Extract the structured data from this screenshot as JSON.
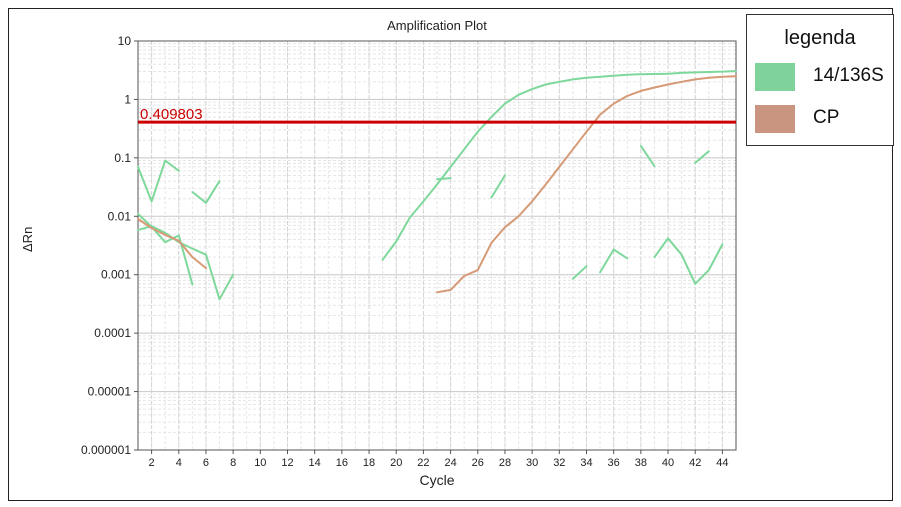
{
  "chart_data": {
    "type": "line",
    "title": "Amplification Plot",
    "xlabel": "Cycle",
    "ylabel": "ΔRn",
    "y_scale": "log",
    "xlim": [
      1,
      45
    ],
    "ylim": [
      1e-06,
      10
    ],
    "x_ticks": [
      2,
      4,
      6,
      8,
      10,
      12,
      14,
      16,
      18,
      20,
      22,
      24,
      26,
      28,
      30,
      32,
      34,
      36,
      38,
      40,
      42,
      44
    ],
    "y_ticks": [
      {
        "value": 10,
        "label": "10"
      },
      {
        "value": 1,
        "label": "1"
      },
      {
        "value": 0.1,
        "label": "0.1"
      },
      {
        "value": 0.01,
        "label": "0.01"
      },
      {
        "value": 0.001,
        "label": "0.001"
      },
      {
        "value": 0.0001,
        "label": "0.0001"
      },
      {
        "value": 1e-05,
        "label": "0.00001"
      },
      {
        "value": 1e-06,
        "label": "0.000001"
      }
    ],
    "grid": true,
    "threshold": {
      "value": 0.409803,
      "label": "0.409803",
      "color": "#cc0000"
    },
    "legend": {
      "title": "legenda",
      "position": "top-right",
      "items": [
        {
          "label": "14/136S",
          "color": "#7fd39a"
        },
        {
          "label": "CP",
          "color": "#c99580"
        }
      ]
    },
    "series": [
      {
        "name": "14/136S",
        "color": "#7ed89b",
        "segments": [
          [
            [
              1,
              0.07
            ],
            [
              2,
              0.018
            ],
            [
              3,
              0.09
            ],
            [
              4,
              0.06
            ]
          ],
          [
            [
              5,
              0.026
            ],
            [
              6,
              0.017
            ],
            [
              7,
              0.04
            ]
          ],
          [
            [
              1,
              0.011
            ],
            [
              2,
              0.0066
            ],
            [
              3,
              0.0036
            ],
            [
              4,
              0.0047
            ],
            [
              5,
              0.00068
            ]
          ],
          [
            [
              1,
              0.0058
            ],
            [
              2,
              0.0068
            ],
            [
              3,
              0.0052
            ],
            [
              4,
              0.0036
            ],
            [
              5,
              0.0028
            ],
            [
              6,
              0.0022
            ],
            [
              7,
              0.00038
            ],
            [
              8,
              0.001
            ]
          ],
          [
            [
              19,
              0.0018
            ],
            [
              20,
              0.0037
            ],
            [
              21,
              0.0095
            ],
            [
              22,
              0.018
            ],
            [
              23,
              0.035
            ],
            [
              24,
              0.07
            ],
            [
              25,
              0.14
            ],
            [
              26,
              0.28
            ],
            [
              27,
              0.5
            ],
            [
              28,
              0.85
            ],
            [
              29,
              1.2
            ],
            [
              30,
              1.5
            ],
            [
              31,
              1.8
            ],
            [
              32,
              2.0
            ],
            [
              33,
              2.2
            ],
            [
              34,
              2.35
            ],
            [
              35,
              2.45
            ],
            [
              36,
              2.55
            ],
            [
              37,
              2.65
            ],
            [
              38,
              2.7
            ],
            [
              39,
              2.72
            ],
            [
              40,
              2.75
            ],
            [
              41,
              2.85
            ],
            [
              42,
              2.9
            ],
            [
              43,
              2.95
            ],
            [
              44,
              3.0
            ],
            [
              45,
              3.05
            ]
          ],
          [
            [
              23,
              0.043
            ],
            [
              24,
              0.045
            ]
          ],
          [
            [
              27,
              0.021
            ],
            [
              28,
              0.05
            ]
          ],
          [
            [
              33,
              0.00085
            ],
            [
              34,
              0.0014
            ]
          ],
          [
            [
              35,
              0.0011
            ],
            [
              36,
              0.0027
            ],
            [
              37,
              0.0019
            ]
          ],
          [
            [
              38,
              0.16
            ],
            [
              39,
              0.072
            ]
          ],
          [
            [
              39,
              0.002
            ],
            [
              40,
              0.0042
            ],
            [
              41,
              0.0022
            ],
            [
              42,
              0.0007
            ],
            [
              43,
              0.0012
            ],
            [
              44,
              0.0033
            ]
          ],
          [
            [
              42,
              0.082
            ],
            [
              43,
              0.13
            ]
          ]
        ]
      },
      {
        "name": "CP",
        "color": "#d69a77",
        "segments": [
          [
            [
              1,
              0.009
            ],
            [
              2,
              0.0063
            ],
            [
              3,
              0.0048
            ],
            [
              4,
              0.0038
            ],
            [
              5,
              0.002
            ],
            [
              6,
              0.0013
            ]
          ],
          [
            [
              23,
              0.0005
            ],
            [
              24,
              0.00055
            ],
            [
              25,
              0.00095
            ],
            [
              26,
              0.0012
            ],
            [
              27,
              0.0035
            ],
            [
              28,
              0.0065
            ],
            [
              29,
              0.01
            ],
            [
              30,
              0.018
            ],
            [
              31,
              0.035
            ],
            [
              32,
              0.07
            ],
            [
              33,
              0.14
            ],
            [
              34,
              0.28
            ],
            [
              35,
              0.55
            ],
            [
              36,
              0.85
            ],
            [
              37,
              1.15
            ],
            [
              38,
              1.4
            ],
            [
              39,
              1.6
            ],
            [
              40,
              1.8
            ],
            [
              41,
              2.0
            ],
            [
              42,
              2.2
            ],
            [
              43,
              2.35
            ],
            [
              44,
              2.45
            ],
            [
              45,
              2.5
            ]
          ]
        ]
      }
    ]
  }
}
